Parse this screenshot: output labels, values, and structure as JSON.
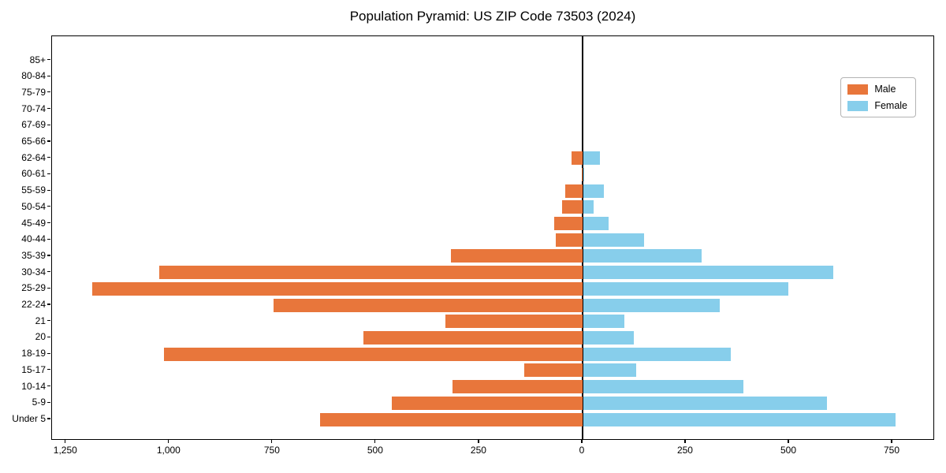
{
  "title": "Population Pyramid: US ZIP Code 73503 (2024)",
  "legend": {
    "male_label": "Male",
    "female_label": "Female",
    "position": "upper right"
  },
  "colors": {
    "male": "#e8763b",
    "female": "#87ceeb",
    "axis": "#000000",
    "background": "#ffffff",
    "legend_border": "#b3b3b3"
  },
  "chart_data": {
    "type": "bar",
    "orientation": "horizontal-pyramid",
    "title": "Population Pyramid: US ZIP Code 73503 (2024)",
    "grid": false,
    "legend_position": "upper right",
    "categories_top_to_bottom": [
      "85+",
      "80-84",
      "75-79",
      "70-74",
      "67-69",
      "65-66",
      "62-64",
      "60-61",
      "55-59",
      "50-54",
      "45-49",
      "40-44",
      "35-39",
      "30-34",
      "25-29",
      "22-24",
      "21",
      "20",
      "18-19",
      "15-17",
      "10-14",
      "5-9",
      "Under 5"
    ],
    "series": [
      {
        "name": "Male",
        "side": "left",
        "color": "#e8763b",
        "values": [
          0,
          0,
          0,
          0,
          0,
          0,
          27,
          2,
          41,
          50,
          69,
          64,
          318,
          1024,
          1187,
          748,
          331,
          530,
          1014,
          142,
          314,
          462,
          635
        ]
      },
      {
        "name": "Female",
        "side": "right",
        "color": "#87ceeb",
        "values": [
          0,
          0,
          0,
          0,
          0,
          0,
          41,
          3,
          50,
          26,
          62,
          147,
          286,
          606,
          497,
          330,
          99,
          122,
          358,
          129,
          387,
          591,
          756
        ]
      }
    ],
    "x_ticks": [
      {
        "value": -1250,
        "label": "1,250"
      },
      {
        "value": -1000,
        "label": "1,000"
      },
      {
        "value": -750,
        "label": "750"
      },
      {
        "value": -500,
        "label": "500"
      },
      {
        "value": -250,
        "label": "250"
      },
      {
        "value": 0,
        "label": "0"
      },
      {
        "value": 250,
        "label": "250"
      },
      {
        "value": 500,
        "label": "500"
      },
      {
        "value": 750,
        "label": "750"
      }
    ],
    "xlim": [
      -1284,
      853
    ]
  }
}
